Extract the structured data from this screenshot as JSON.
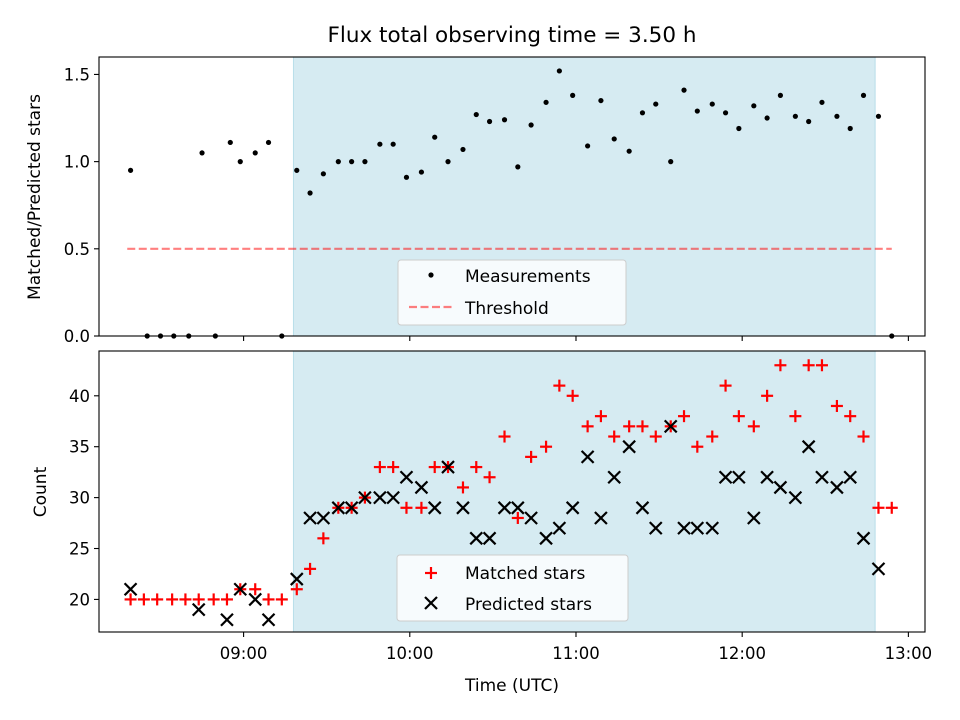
{
  "figure": {
    "title": "Flux total observing time = 3.50 h",
    "xlabel": "Time (UTC)"
  },
  "colors": {
    "span": "#add8e6",
    "threshold": "#ff0000",
    "matched": "#ff0000",
    "predicted": "#000000",
    "measurement": "#000000"
  },
  "chart_data": [
    {
      "type": "scatter",
      "panel": "top",
      "ylabel": "Matched/Predicted stars",
      "xlim": [
        8.13,
        13.1
      ],
      "ylim": [
        0,
        1.6
      ],
      "yticks": [
        0.0,
        0.5,
        1.0,
        1.5
      ],
      "ytick_labels": [
        "0.0",
        "0.5",
        "1.0",
        "1.5"
      ],
      "xticks": [
        9,
        10,
        11,
        12,
        13
      ],
      "span": [
        9.3,
        12.8
      ],
      "threshold": {
        "value": 0.5,
        "x": [
          8.3,
          12.9
        ],
        "label": "Threshold"
      },
      "legend": [
        "Measurements",
        "Threshold"
      ],
      "legend_loc": "lower center",
      "series": [
        {
          "name": "Measurements",
          "x": [
            8.32,
            8.42,
            8.5,
            8.58,
            8.67,
            8.75,
            8.83,
            8.92,
            8.98,
            9.07,
            9.15,
            9.23,
            9.32,
            9.4,
            9.48,
            9.57,
            9.65,
            9.73,
            9.82,
            9.9,
            9.98,
            10.07,
            10.15,
            10.23,
            10.32,
            10.4,
            10.48,
            10.57,
            10.65,
            10.73,
            10.82,
            10.9,
            10.98,
            11.07,
            11.15,
            11.23,
            11.32,
            11.4,
            11.48,
            11.57,
            11.65,
            11.73,
            11.82,
            11.9,
            11.98,
            12.07,
            12.15,
            12.23,
            12.32,
            12.4,
            12.48,
            12.57,
            12.65,
            12.73,
            12.82,
            12.9
          ],
          "y": [
            0.95,
            0.0,
            0.0,
            0.0,
            0.0,
            1.05,
            0.0,
            1.11,
            1.0,
            1.05,
            1.11,
            0.0,
            0.95,
            0.82,
            0.93,
            1.0,
            1.0,
            1.0,
            1.1,
            1.1,
            0.91,
            0.94,
            1.14,
            1.0,
            1.07,
            1.27,
            1.23,
            1.24,
            0.97,
            1.21,
            1.34,
            1.52,
            1.38,
            1.09,
            1.35,
            1.13,
            1.06,
            1.28,
            1.33,
            1.0,
            1.41,
            1.29,
            1.33,
            1.28,
            1.19,
            1.32,
            1.25,
            1.38,
            1.26,
            1.23,
            1.34,
            1.26,
            1.19,
            1.38,
            1.26,
            0.0
          ]
        }
      ]
    },
    {
      "type": "scatter",
      "panel": "bottom",
      "ylabel": "Count",
      "xlim": [
        8.13,
        13.1
      ],
      "ylim": [
        16.8,
        44.4
      ],
      "yticks": [
        20,
        25,
        30,
        35,
        40
      ],
      "ytick_labels": [
        "20",
        "25",
        "30",
        "35",
        "40"
      ],
      "xticks": [
        9,
        10,
        11,
        12,
        13
      ],
      "xtick_labels": [
        "09:00",
        "10:00",
        "11:00",
        "12:00",
        "13:00"
      ],
      "span": [
        9.3,
        12.8
      ],
      "legend": [
        "Matched stars",
        "Predicted stars"
      ],
      "legend_loc": "lower center",
      "series": [
        {
          "name": "Matched stars",
          "marker": "+",
          "x": [
            8.32,
            8.4,
            8.48,
            8.57,
            8.65,
            8.73,
            8.82,
            8.9,
            8.98,
            9.07,
            9.15,
            9.23,
            9.32,
            9.4,
            9.48,
            9.57,
            9.65,
            9.73,
            9.82,
            9.9,
            9.98,
            10.07,
            10.15,
            10.23,
            10.32,
            10.4,
            10.48,
            10.57,
            10.65,
            10.73,
            10.82,
            10.9,
            10.98,
            11.07,
            11.15,
            11.23,
            11.32,
            11.4,
            11.48,
            11.57,
            11.65,
            11.73,
            11.82,
            11.9,
            11.98,
            12.07,
            12.15,
            12.23,
            12.32,
            12.4,
            12.48,
            12.57,
            12.65,
            12.73,
            12.82,
            12.9
          ],
          "y": [
            20,
            20,
            20,
            20,
            20,
            20,
            20,
            20,
            21,
            21,
            20,
            20,
            21,
            23,
            26,
            29,
            29,
            30,
            33,
            33,
            29,
            29,
            33,
            33,
            31,
            33,
            32,
            36,
            28,
            34,
            35,
            41,
            40,
            37,
            38,
            36,
            37,
            37,
            36,
            37,
            38,
            35,
            36,
            41,
            38,
            37,
            40,
            43,
            38,
            43,
            43,
            39,
            38,
            36,
            29,
            29
          ]
        },
        {
          "name": "Predicted stars",
          "marker": "x",
          "x": [
            8.32,
            8.73,
            8.9,
            8.98,
            9.07,
            9.15,
            9.32,
            9.4,
            9.48,
            9.57,
            9.65,
            9.73,
            9.82,
            9.9,
            9.98,
            10.07,
            10.15,
            10.23,
            10.32,
            10.4,
            10.48,
            10.57,
            10.65,
            10.73,
            10.82,
            10.9,
            10.98,
            11.07,
            11.15,
            11.23,
            11.32,
            11.4,
            11.48,
            11.57,
            11.65,
            11.73,
            11.82,
            11.9,
            11.98,
            12.07,
            12.15,
            12.23,
            12.32,
            12.4,
            12.48,
            12.57,
            12.65,
            12.73,
            12.82
          ],
          "y": [
            21,
            19,
            18,
            21,
            20,
            18,
            22,
            28,
            28,
            29,
            29,
            30,
            30,
            30,
            32,
            31,
            29,
            33,
            29,
            26,
            26,
            29,
            29,
            28,
            26,
            27,
            29,
            34,
            28,
            32,
            35,
            29,
            27,
            37,
            27,
            27,
            27,
            32,
            32,
            28,
            32,
            31,
            30,
            35,
            32,
            31,
            32,
            26,
            23
          ]
        }
      ]
    }
  ]
}
